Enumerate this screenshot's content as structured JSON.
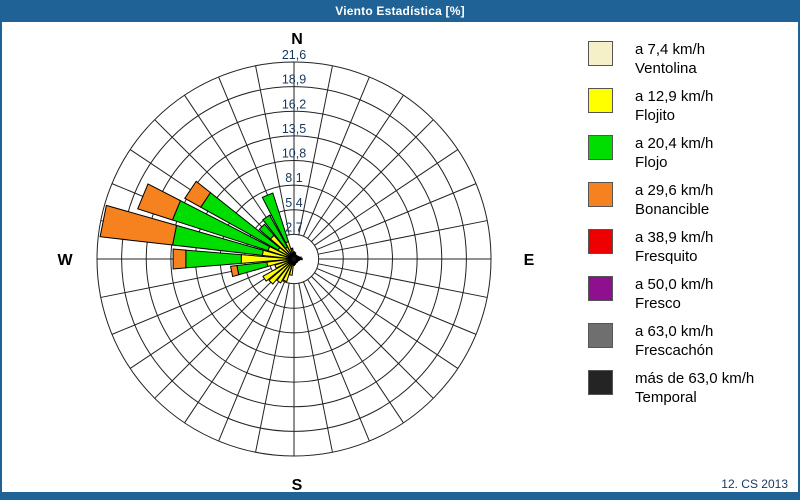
{
  "window": {
    "title": "Viento Estadística [%]"
  },
  "footer": {
    "note": "12. CS 2013"
  },
  "compass": {
    "north": "N",
    "east": "E",
    "south": "S",
    "west": "W"
  },
  "legend": {
    "items": [
      {
        "color": "#f5f0c8",
        "speed": "a 7,4 km/h",
        "name": "Ventolina"
      },
      {
        "color": "#ffff00",
        "speed": "a 12,9 km/h",
        "name": "Flojito"
      },
      {
        "color": "#00dd00",
        "speed": "a 20,4 km/h",
        "name": "Flojo"
      },
      {
        "color": "#f5821f",
        "speed": "a 29,6 km/h",
        "name": "Bonancible"
      },
      {
        "color": "#ee0000",
        "speed": "a 38,9 km/h",
        "name": "Fresquito"
      },
      {
        "color": "#8e108e",
        "speed": "a 50,0 km/h",
        "name": "Fresco"
      },
      {
        "color": "#6f6f6f",
        "speed": "a 63,0 km/h",
        "name": "Frescachón"
      },
      {
        "color": "#242424",
        "speed": "más de 63,0 km/h",
        "name": "Temporal"
      }
    ]
  },
  "chart_data": {
    "type": "bar",
    "variant": "wind_rose_polar_stacked",
    "title": "Viento Estadística [%]",
    "units": "percent",
    "sector_count": 32,
    "sector_width_deg": 11.25,
    "radial_ticks": [
      2.7,
      5.4,
      8.1,
      10.8,
      13.5,
      16.2,
      18.9,
      21.6
    ],
    "radial_tick_labels": [
      "2,7",
      "5,4",
      "8,1",
      "10,8",
      "13,5",
      "16,2",
      "18,9",
      "21,6"
    ],
    "rlim": [
      0,
      21.6
    ],
    "grid": true,
    "legend_position": "right",
    "directions_deg": [
      0,
      11.25,
      22.5,
      33.75,
      45,
      56.25,
      67.5,
      78.75,
      90,
      101.25,
      112.5,
      123.75,
      135,
      146.25,
      157.5,
      168.75,
      180,
      191.25,
      202.5,
      213.75,
      225,
      236.25,
      247.5,
      258.75,
      270,
      281.25,
      292.5,
      303.75,
      315,
      326.25,
      337.5,
      348.75
    ],
    "series": [
      {
        "name": "Ventolina (a 7,4 km/h)",
        "color": "#f5f0c8",
        "values": [
          0.3,
          0.2,
          0.2,
          0.2,
          0.2,
          0.2,
          0.2,
          0.3,
          0.3,
          0.2,
          0.2,
          0.2,
          0.2,
          0.2,
          0.2,
          0.2,
          0.3,
          0.3,
          0.3,
          0.3,
          0.3,
          0.3,
          0.3,
          0.4,
          0.5,
          0.5,
          0.5,
          0.5,
          0.5,
          0.4,
          0.4,
          0.3
        ]
      },
      {
        "name": "Flojito (a 12,9 km/h)",
        "color": "#ffff00",
        "values": [
          0.3,
          0.3,
          0.2,
          0.2,
          0.2,
          0.2,
          0.3,
          0.3,
          0.4,
          0.3,
          0.2,
          0.2,
          0.2,
          0.2,
          0.2,
          0.3,
          0.3,
          1.5,
          2.3,
          2.7,
          3.3,
          3.6,
          1.9,
          2.6,
          5.3,
          3.0,
          2.5,
          1.5,
          2.9,
          1.1,
          1.6,
          0.7
        ]
      },
      {
        "name": "Flojo (a 20,4 km/h)",
        "color": "#00dd00",
        "values": [
          0.2,
          0.2,
          0.1,
          0,
          0.1,
          0,
          0.1,
          0.2,
          0.2,
          0.1,
          0.1,
          0,
          0.1,
          0,
          0.1,
          0.1,
          0.1,
          0,
          0,
          0,
          0,
          0,
          0,
          3.3,
          6.1,
          9.9,
          11.0,
          9.7,
          1.6,
          4.0,
          5.6,
          0.2
        ]
      },
      {
        "name": "Bonancible (a 29,6 km/h)",
        "color": "#f5821f",
        "values": [
          0,
          0,
          0,
          0,
          0,
          0,
          0,
          0,
          0,
          0,
          0,
          0,
          0,
          0,
          0,
          0,
          0,
          0,
          0,
          0,
          0,
          0,
          0,
          0.7,
          1.4,
          8.0,
          4.0,
          2.0,
          0,
          0,
          0,
          0
        ]
      },
      {
        "name": "Fresquito (a 38,9 km/h)",
        "color": "#ee0000",
        "values": [
          0,
          0,
          0,
          0,
          0,
          0,
          0,
          0,
          0,
          0,
          0,
          0,
          0,
          0,
          0,
          0,
          0,
          0,
          0,
          0,
          0,
          0,
          0,
          0,
          0,
          0,
          0,
          0,
          0,
          0,
          0,
          0
        ]
      },
      {
        "name": "Fresco (a 50,0 km/h)",
        "color": "#8e108e",
        "values": [
          0,
          0,
          0,
          0,
          0,
          0,
          0,
          0,
          0,
          0,
          0,
          0,
          0,
          0,
          0,
          0,
          0,
          0,
          0,
          0,
          0,
          0,
          0,
          0,
          0,
          0,
          0,
          0,
          0,
          0,
          0,
          0
        ]
      },
      {
        "name": "Frescachón (a 63,0 km/h)",
        "color": "#6f6f6f",
        "values": [
          0,
          0,
          0,
          0,
          0,
          0,
          0,
          0,
          0,
          0,
          0,
          0,
          0,
          0,
          0,
          0,
          0,
          0,
          0,
          0,
          0,
          0,
          0,
          0,
          0,
          0,
          0,
          0,
          0,
          0,
          0,
          0
        ]
      },
      {
        "name": "Temporal (más de 63,0 km/h)",
        "color": "#242424",
        "values": [
          0,
          0,
          0,
          0,
          0,
          0,
          0,
          0,
          0,
          0,
          0,
          0,
          0,
          0,
          0,
          0,
          0,
          0,
          0,
          0,
          0,
          0,
          0,
          0,
          0,
          0,
          0,
          0,
          0,
          0,
          0,
          0
        ]
      }
    ]
  }
}
